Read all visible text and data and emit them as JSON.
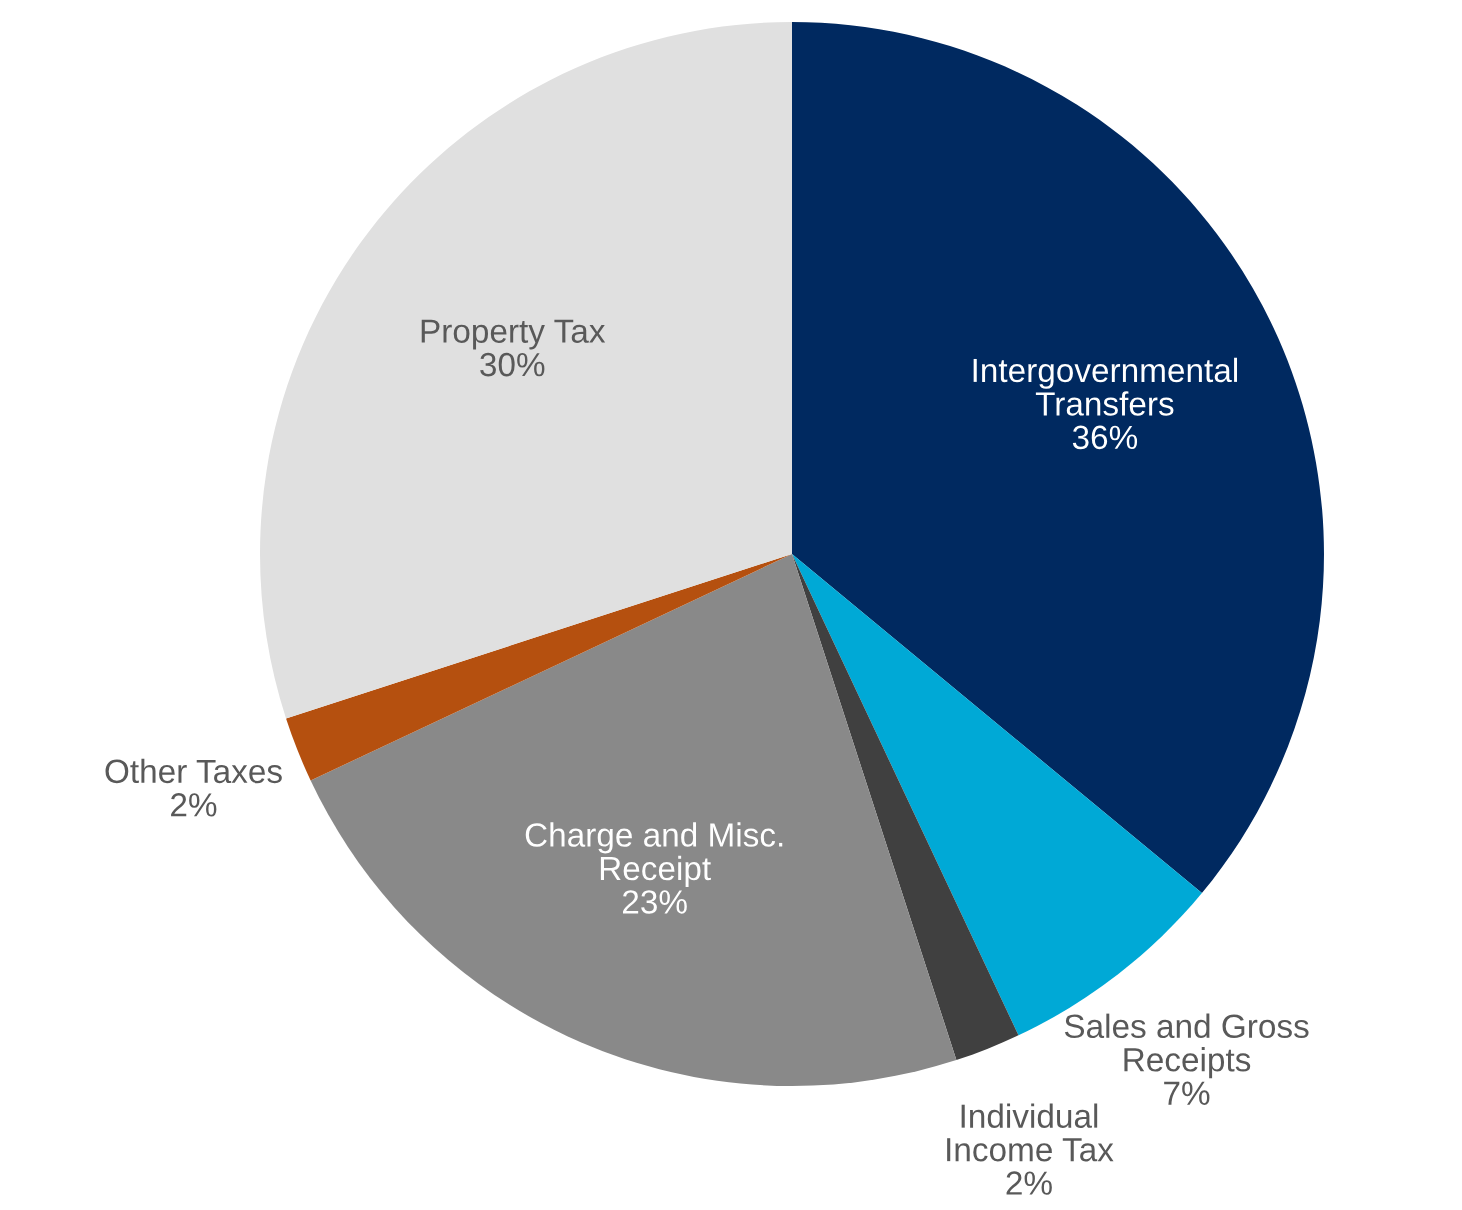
{
  "chart_data": {
    "type": "pie",
    "categories": [
      "Intergovernmental\nTransfers",
      "Sales and Gross\nReceipts",
      "Individual\nIncome Tax",
      "Charge and Misc.\nReceipt",
      "Other Taxes",
      "Property Tax"
    ],
    "values": [
      36,
      7,
      2,
      23,
      2,
      30
    ],
    "value_labels": [
      "36%",
      "7%",
      "2%",
      "23%",
      "2%",
      "30%"
    ],
    "colors": [
      "#002960",
      "#00a9d6",
      "#404040",
      "#898989",
      "#b5500f",
      "#e0e0e0"
    ],
    "legend": false
  }
}
